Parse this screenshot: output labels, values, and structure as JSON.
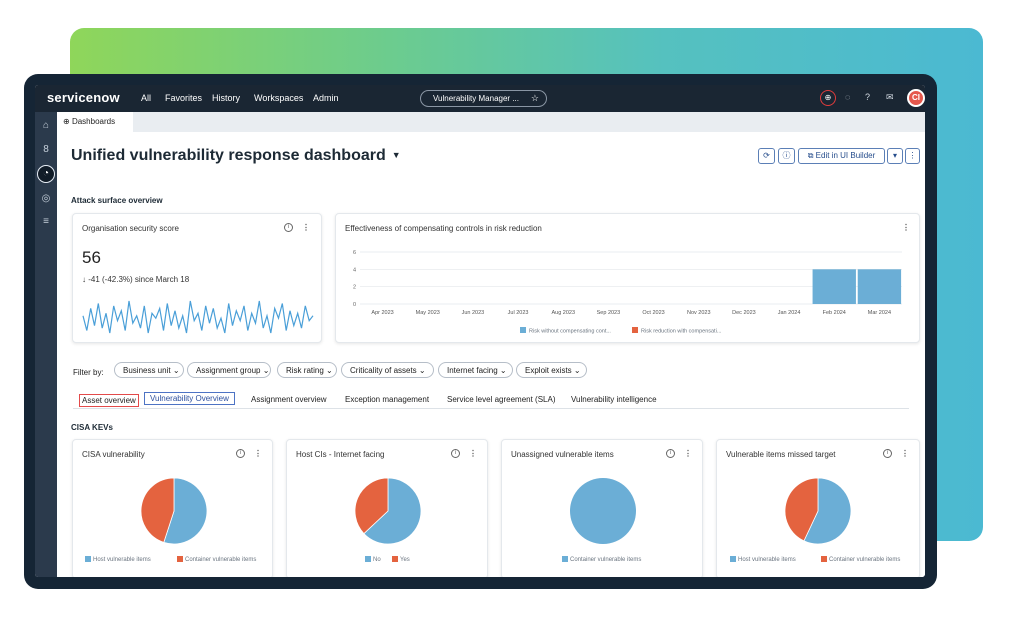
{
  "topbar": {
    "logo": "servicenow",
    "nav": [
      "All",
      "Favorites",
      "History",
      "Workspaces",
      "Admin"
    ],
    "workspace_pill": "Vulnerability Manager ...",
    "avatar_initials": "CI"
  },
  "tab": {
    "label": "Dashboards"
  },
  "dashboard": {
    "title": "Unified vulnerability response dashboard",
    "edit_button": "Edit in UI Builder"
  },
  "sections": {
    "attack_surface": "Attack surface overview",
    "cisa": "CISA KEVs"
  },
  "security_score": {
    "title": "Organisation security score",
    "score": "56",
    "delta": "↓ -41 (-42.3%) since March 18",
    "sparkline": [
      8,
      2,
      11,
      4,
      13,
      3,
      9,
      1,
      12,
      6,
      10,
      2,
      14,
      5,
      8,
      3,
      12,
      1,
      9,
      7,
      11,
      2,
      13,
      4,
      10,
      3,
      8,
      1,
      14,
      6,
      9,
      2,
      12,
      5,
      11,
      3,
      7,
      1,
      13,
      4,
      10,
      6,
      12,
      2,
      9,
      5,
      14,
      3,
      8,
      1,
      11,
      7,
      13,
      2,
      10,
      4,
      9,
      3,
      12,
      6,
      8
    ]
  },
  "effectiveness": {
    "title": "Effectiveness of compensating controls in risk reduction",
    "chart_data": {
      "type": "bar",
      "categories": [
        "Apr 2023",
        "May 2023",
        "Jun 2023",
        "Jul 2023",
        "Aug 2023",
        "Sep 2023",
        "Oct 2023",
        "Nov 2023",
        "Dec 2023",
        "Jan 2024",
        "Feb 2024",
        "Mar 2024"
      ],
      "series": [
        {
          "name": "Risk without compensating cont...",
          "color": "#6baed6",
          "values": [
            0,
            0,
            0,
            0,
            0,
            0,
            0,
            0,
            0,
            0,
            4,
            4
          ]
        },
        {
          "name": "Risk reduction with compensati...",
          "color": "#e4633f",
          "values": [
            0,
            0,
            0,
            0,
            0,
            0,
            0,
            0,
            0,
            0,
            0,
            0
          ]
        }
      ],
      "yticks": [
        0,
        2,
        4,
        6
      ],
      "ylim": [
        0,
        6
      ]
    }
  },
  "filters": {
    "label": "Filter by:",
    "chips": [
      "Business unit",
      "Assignment group",
      "Risk rating",
      "Criticality of assets",
      "Internet facing",
      "Exploit exists"
    ]
  },
  "tabs": [
    "Asset overview",
    "Vulnerability Overview",
    "Assignment overview",
    "Exception management",
    "Service level agreement (SLA)",
    "Vulnerability intelligence"
  ],
  "pies": [
    {
      "title": "CISA vulnerability",
      "chart_data": {
        "type": "pie",
        "slices": [
          {
            "label": "Host vulnerable items",
            "value": 55,
            "color": "#6baed6"
          },
          {
            "label": "Container vulnerable items",
            "value": 45,
            "color": "#e4633f"
          }
        ]
      }
    },
    {
      "title": "Host CIs - Internet facing",
      "chart_data": {
        "type": "pie",
        "slices": [
          {
            "label": "No",
            "value": 63,
            "color": "#6baed6"
          },
          {
            "label": "Yes",
            "value": 37,
            "color": "#e4633f"
          }
        ]
      }
    },
    {
      "title": "Unassigned vulnerable items",
      "chart_data": {
        "type": "pie",
        "slices": [
          {
            "label": "Container vulnerable items",
            "value": 100,
            "color": "#6baed6"
          }
        ]
      }
    },
    {
      "title": "Vulnerable items missed target",
      "chart_data": {
        "type": "pie",
        "slices": [
          {
            "label": "Host vulnerable items",
            "value": 57,
            "color": "#6baed6"
          },
          {
            "label": "Container vulnerable items",
            "value": 43,
            "color": "#e4633f"
          }
        ]
      }
    }
  ]
}
